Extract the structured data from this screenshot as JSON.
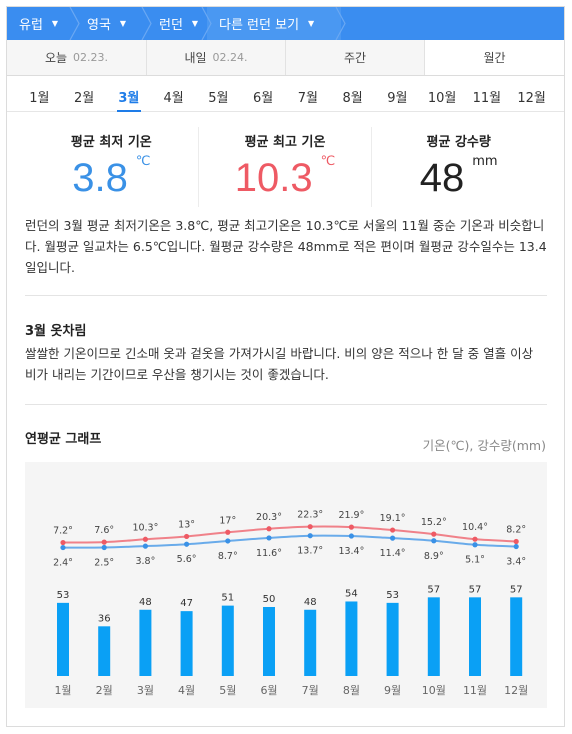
{
  "breadcrumb": [
    {
      "label": "유럽"
    },
    {
      "label": "영국"
    },
    {
      "label": "런던"
    },
    {
      "label": "다른 런던 보기"
    }
  ],
  "day_tabs": [
    {
      "label": "오늘",
      "date": "02.23."
    },
    {
      "label": "내일",
      "date": "02.24."
    },
    {
      "label": "주간",
      "date": ""
    },
    {
      "label": "월간",
      "date": ""
    }
  ],
  "months": [
    "1월",
    "2월",
    "3월",
    "4월",
    "5월",
    "6월",
    "7월",
    "8월",
    "9월",
    "10월",
    "11월",
    "12월"
  ],
  "selected_month_index": 2,
  "stats": {
    "low_title": "평균 최저 기온",
    "low_value": "3.8",
    "low_unit": "℃",
    "high_title": "평균 최고 기온",
    "high_value": "10.3",
    "high_unit": "℃",
    "rain_title": "평균 강수량",
    "rain_value": "48",
    "rain_unit": "mm"
  },
  "description": "런던의 3월 평균 최저기온은 3.8℃, 평균 최고기온은 10.3℃로 서울의 11월 중순 기온과 비슷합니다. 월평균 일교차는 6.5℃입니다. 월평균 강수량은 48mm로 적은 편이며 월평균 강수일수는 13.4일입니다.",
  "clothing": {
    "title": "3월 옷차림",
    "text": "쌀쌀한 기온이므로 긴소매 옷과 겉옷을 가져가시길 바랍니다. 비의 양은 적으나 한 달 중 열흘 이상 비가 내리는 기간이므로 우산을 챙기시는 것이 좋겠습니다."
  },
  "graph": {
    "title": "연평균 그래프",
    "unit_label": "기온(℃), 강수량(mm)"
  },
  "colors": {
    "header_blue": "#3a8df0",
    "accent_blue": "#1e7ce8",
    "low_temp": "#3a91e6",
    "high_temp": "#ee5a64",
    "rain_bar": "#0aa0f5"
  },
  "chart_data": {
    "type": "line",
    "categories": [
      "1월",
      "2월",
      "3월",
      "4월",
      "5월",
      "6월",
      "7월",
      "8월",
      "9월",
      "10월",
      "11월",
      "12월"
    ],
    "series": [
      {
        "name": "",
        "kind": "line",
        "color": "#ee5a64",
        "values": [
          7.2,
          7.6,
          10.3,
          13,
          17,
          20.3,
          22.3,
          21.9,
          19.1,
          15.2,
          10.4,
          8.2
        ]
      },
      {
        "name": "",
        "kind": "line",
        "color": "#3a91e6",
        "values": [
          2.4,
          2.5,
          3.8,
          5.6,
          8.7,
          11.6,
          13.7,
          13.4,
          11.4,
          8.9,
          5.1,
          3.4
        ]
      },
      {
        "name": "",
        "kind": "bar",
        "color": "#0aa0f5",
        "values": [
          53,
          36,
          48,
          47,
          51,
          50,
          48,
          54,
          53,
          57,
          57,
          57
        ]
      }
    ],
    "temp_labels_high": [
      "7.2°",
      "7.6°",
      "10.3°",
      "13°",
      "17°",
      "20.3°",
      "22.3°",
      "21.9°",
      "19.1°",
      "15.2°",
      "10.4°",
      "8.2°"
    ],
    "temp_labels_low": [
      "2.4°",
      "2.5°",
      "3.8°",
      "5.6°",
      "8.7°",
      "11.6°",
      "13.7°",
      "13.4°",
      "11.4°",
      "8.9°",
      "5.1°",
      "3.4°"
    ],
    "title": "",
    "xlabel": "",
    "ylabel": ""
  }
}
